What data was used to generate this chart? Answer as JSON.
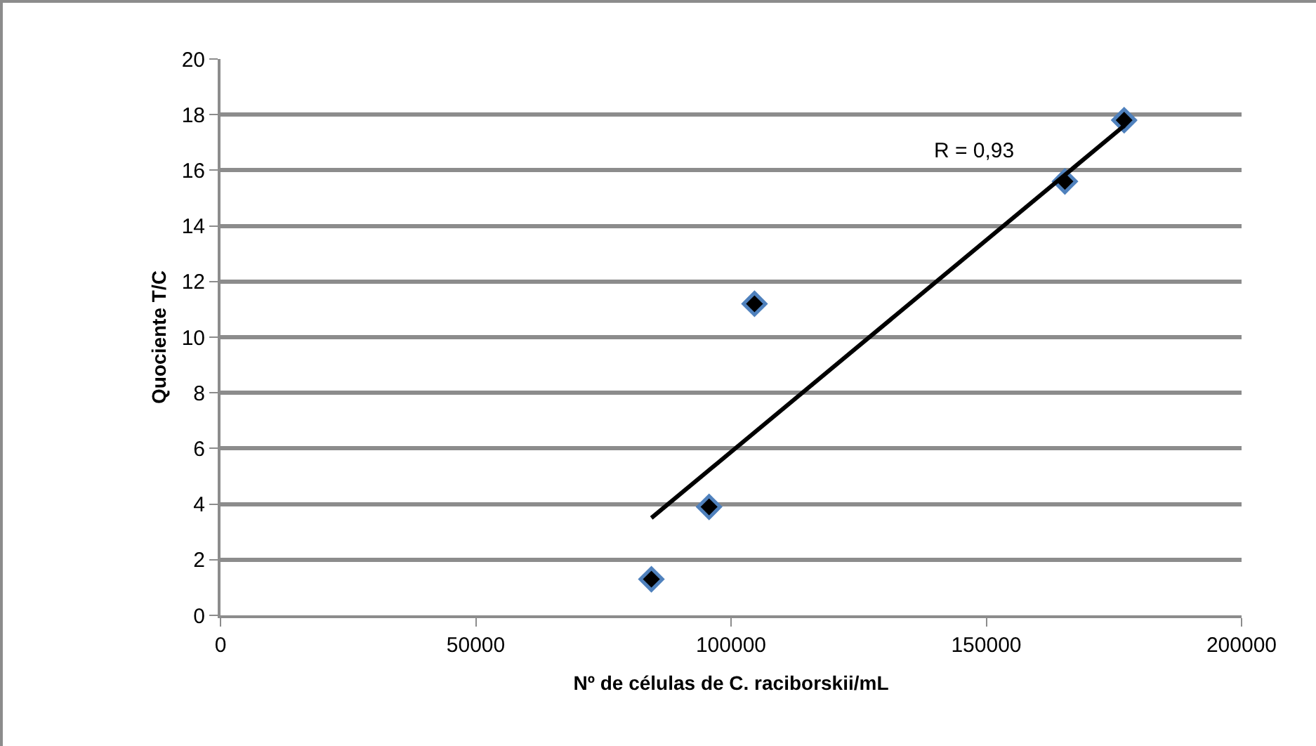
{
  "chart_data": {
    "type": "scatter",
    "xlabel": "Nº de células de C. raciborskii/mL",
    "ylabel": "Quociente T/C",
    "x": [
      84400,
      95700,
      104600,
      165400,
      177000
    ],
    "series": [
      {
        "color": "#000000",
        "values": [
          1.3,
          3.9,
          11.2,
          15.6,
          17.8
        ],
        "marker": "diamond"
      },
      {
        "type": "line",
        "color": "#000000",
        "x": [
          84400,
          177000
        ],
        "values": [
          3.5,
          17.6
        ],
        "marker": "none"
      }
    ],
    "annotations": [
      "R = 0,93"
    ],
    "xlim": [
      0,
      200000
    ],
    "xticks": [
      0,
      50000,
      100000,
      150000,
      200000
    ],
    "ylim": [
      0,
      20
    ],
    "yticks": [
      0,
      2,
      4,
      6,
      8,
      10,
      12,
      14,
      16,
      18,
      20
    ],
    "grid": "y"
  }
}
